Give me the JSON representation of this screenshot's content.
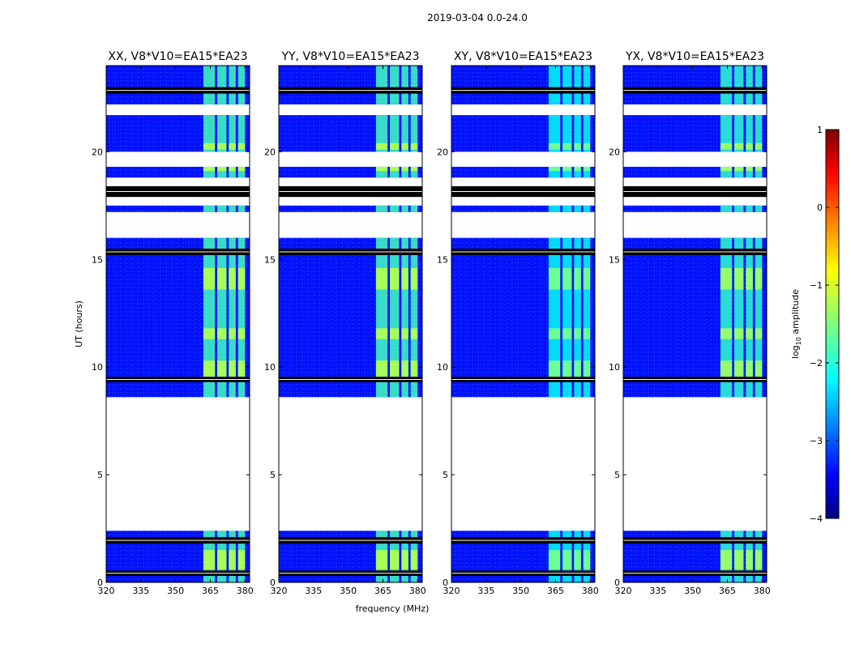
{
  "chart_data": {
    "type": "heatmap",
    "suptitle": "2019-03-04 0.0-24.0",
    "xlabel": "frequency (MHz)",
    "ylabel": "UT (hours)",
    "xlim": [
      320,
      382
    ],
    "ylim": [
      0,
      24
    ],
    "xticks": [
      320,
      335,
      350,
      365,
      380
    ],
    "xtick_labels": [
      "320",
      "335",
      "350",
      "365",
      "380"
    ],
    "yticks": [
      0,
      5,
      10,
      15,
      20
    ],
    "ytick_labels": [
      "0",
      "5",
      "10",
      "15",
      "20"
    ],
    "colorbar": {
      "label": "log10 amplitude",
      "label_base": "log",
      "label_sub": "10",
      "label_rest": " amplitude",
      "range": [
        -4,
        1
      ],
      "ticks": [
        1,
        0,
        -1,
        -2,
        -3,
        -4
      ],
      "tick_labels": [
        "1",
        "0",
        "−1",
        "−2",
        "−3",
        "−4"
      ],
      "colormap": "jet"
    },
    "panels": [
      {
        "title": "XX, V8*V10=EA15*EA23"
      },
      {
        "title": "YY, V8*V10=EA15*EA23"
      },
      {
        "title": "XY, V8*V10=EA15*EA23"
      },
      {
        "title": "YX, V8*V10=EA15*EA23"
      }
    ],
    "background_log_amplitude": -3.3,
    "signal_band_mhz": [
      362,
      380
    ],
    "signal_channels_mhz": [
      [
        362,
        367
      ],
      [
        368,
        372
      ],
      [
        373,
        376
      ],
      [
        377,
        380
      ]
    ],
    "signal_log_amplitude_by_panel": [
      -1.3,
      -1.3,
      -1.6,
      -1.4
    ],
    "data_hours": [
      [
        0.0,
        0.6
      ],
      [
        0.6,
        2.4
      ],
      [
        8.6,
        16.0
      ],
      [
        17.2,
        17.5
      ],
      [
        18.8,
        19.3
      ],
      [
        20.0,
        21.7
      ],
      [
        22.2,
        24.0
      ]
    ],
    "strong_signal_hours": [
      [
        0.6,
        1.5
      ],
      [
        9.4,
        10.3
      ],
      [
        11.3,
        11.8
      ],
      [
        13.6,
        14.6
      ],
      [
        19.1,
        19.3
      ],
      [
        20.1,
        20.4
      ]
    ],
    "blank_hours": [
      [
        2.4,
        8.6
      ],
      [
        16.3,
        16.8
      ],
      [
        17.7,
        18.2
      ],
      [
        19.7,
        19.9
      ],
      [
        21.9,
        22.1
      ]
    ],
    "flagged_hours": [
      [
        0.3,
        0.55
      ],
      [
        1.8,
        2.1
      ],
      [
        9.3,
        9.55
      ],
      [
        15.2,
        15.5
      ],
      [
        17.9,
        18.4
      ],
      [
        22.7,
        23.0
      ]
    ]
  }
}
